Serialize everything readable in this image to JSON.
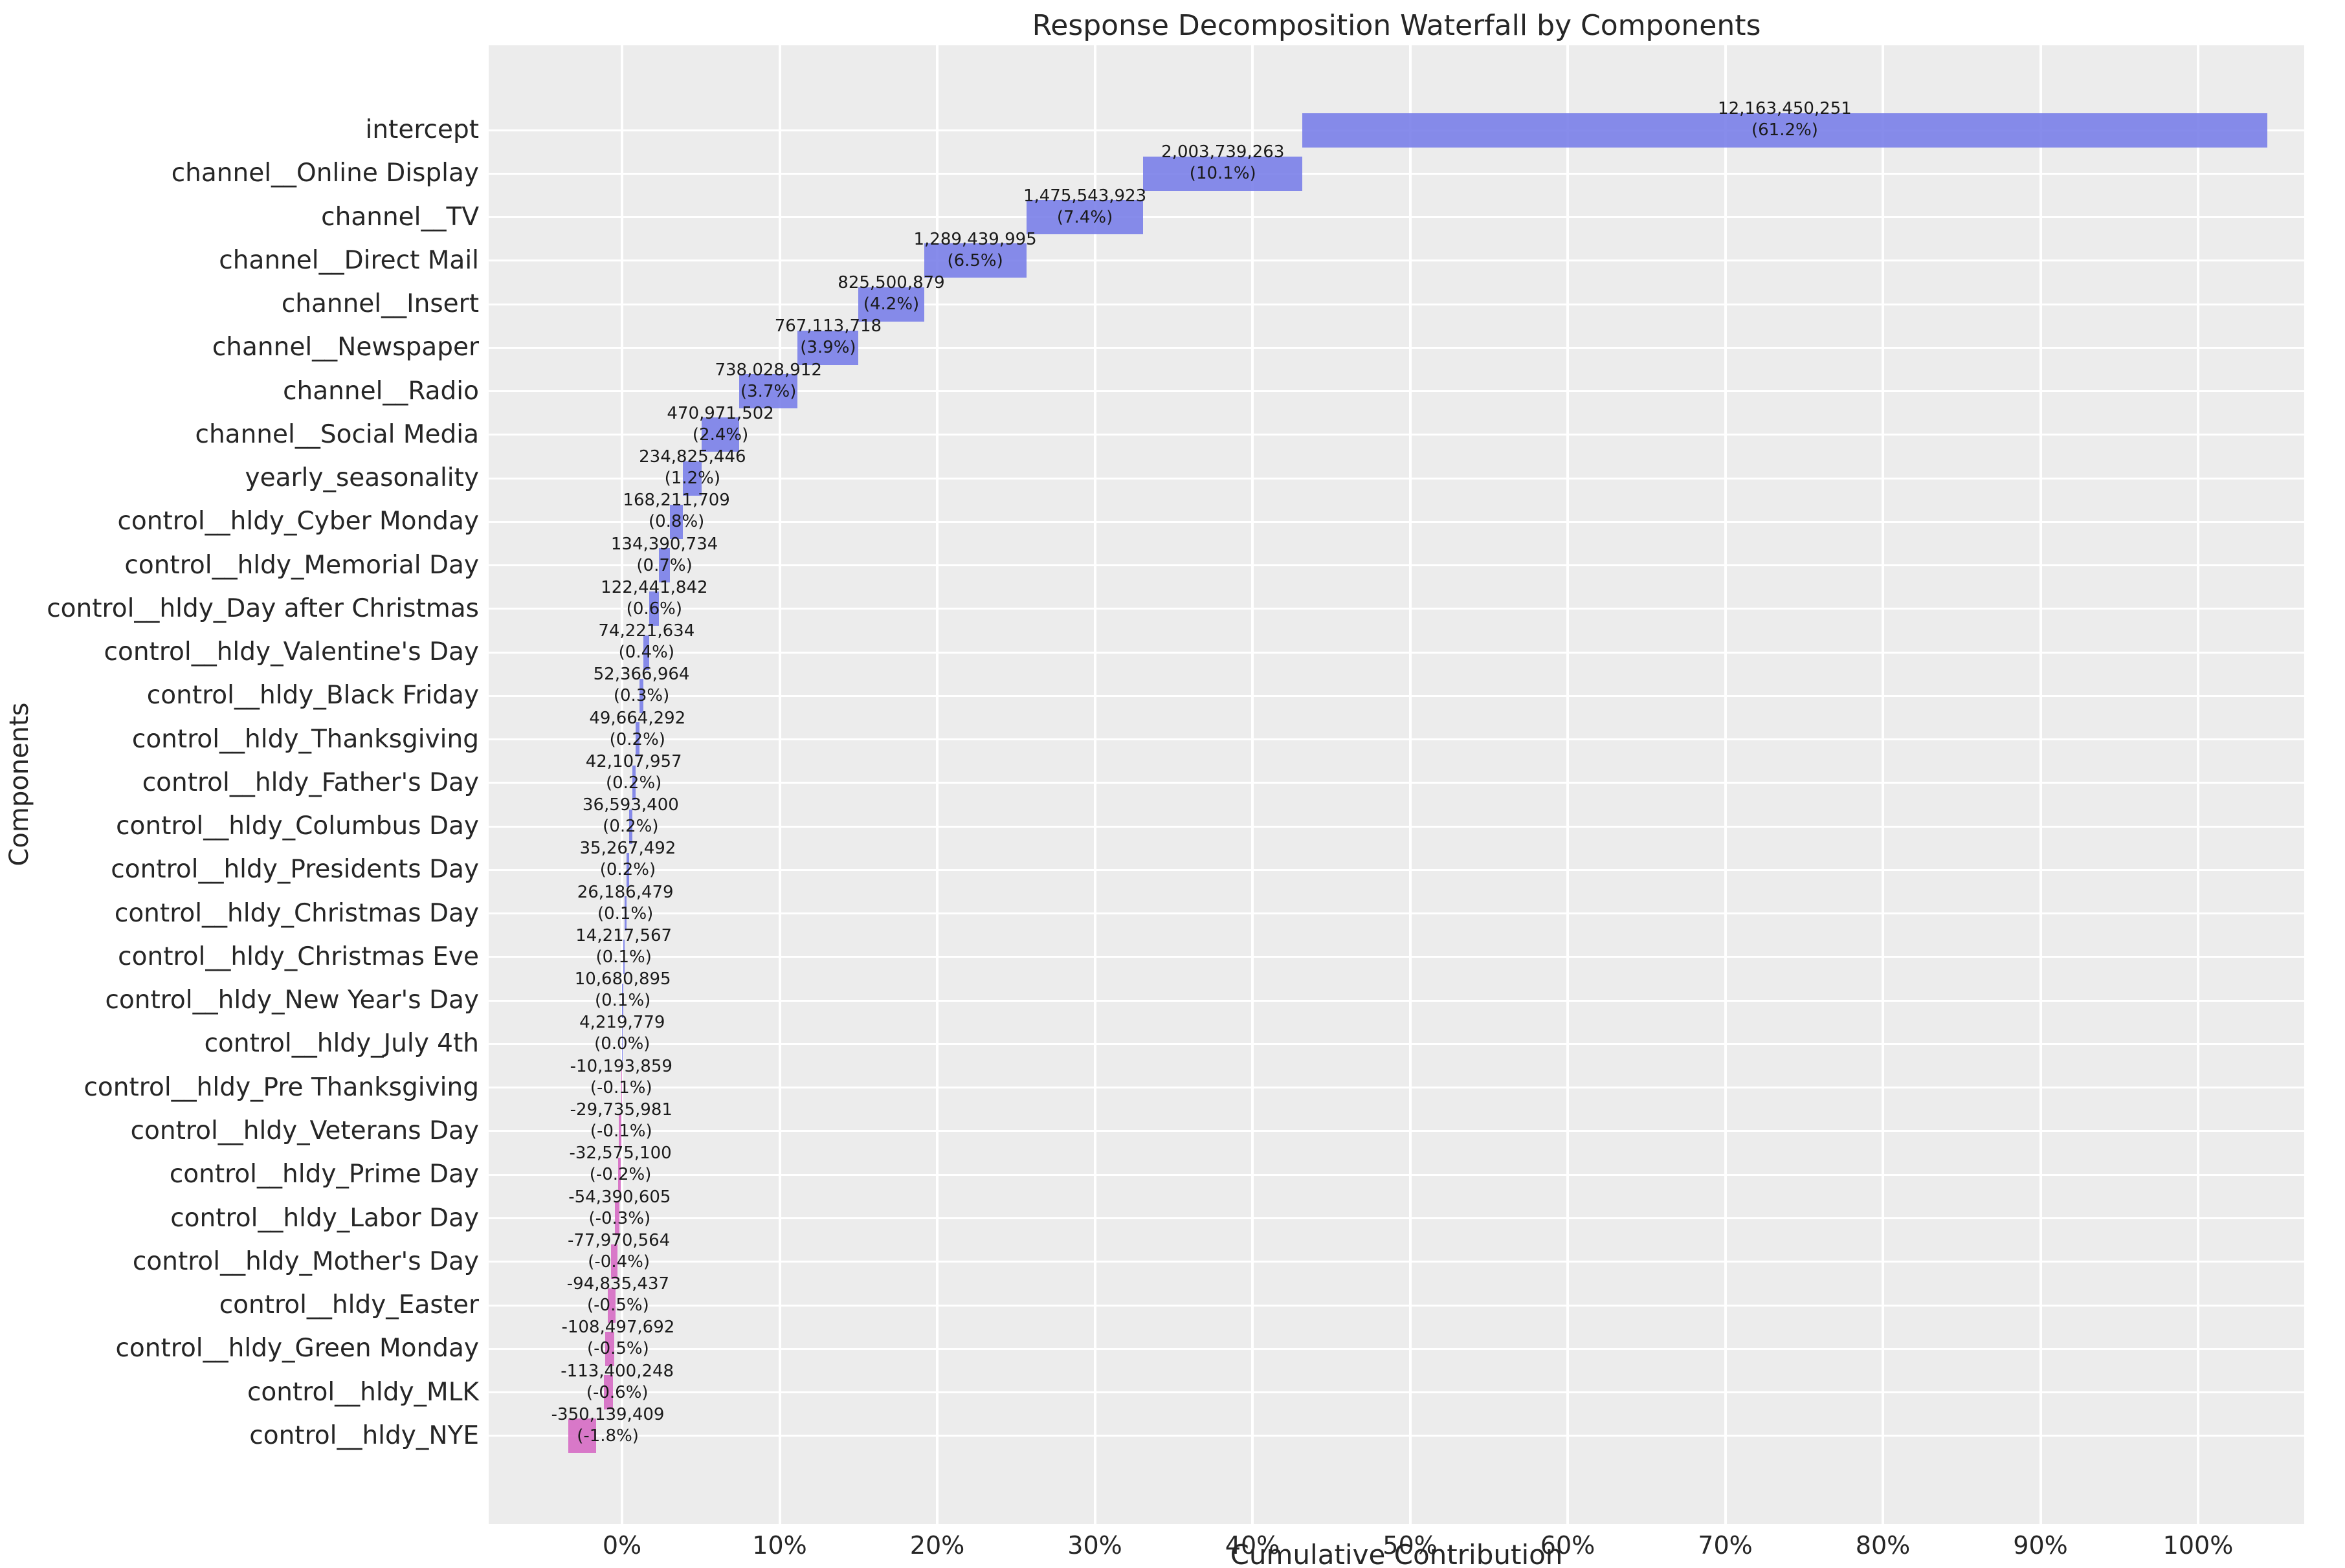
{
  "title": "Response Decomposition Waterfall by Components",
  "xlabel": "Cumulative Contribution",
  "ylabel": "Components",
  "colors": {
    "positive_bar": "#8b8fe8",
    "negative_bar": "#d882c8",
    "plot_background": "#ececec",
    "gridline": "#ffffff",
    "text": "#262626"
  },
  "chart_data": {
    "type": "bar",
    "subtype": "horizontal-waterfall",
    "title": "Response Decomposition Waterfall by Components",
    "xlabel": "Cumulative Contribution",
    "ylabel": "Components",
    "grid": true,
    "x_axis_range_pct": [
      -8.5,
      106.8
    ],
    "x_ticks": [
      {
        "label": "0%",
        "pct": 0
      },
      {
        "label": "10%",
        "pct": 10
      },
      {
        "label": "20%",
        "pct": 20
      },
      {
        "label": "30%",
        "pct": 30
      },
      {
        "label": "40%",
        "pct": 40
      },
      {
        "label": "50%",
        "pct": 50
      },
      {
        "label": "60%",
        "pct": 60
      },
      {
        "label": "70%",
        "pct": 70
      },
      {
        "label": "80%",
        "pct": 80
      },
      {
        "label": "90%",
        "pct": 90
      },
      {
        "label": "100%",
        "pct": 100
      }
    ],
    "components": [
      {
        "label": "intercept",
        "value": 12163450251,
        "value_label": "12,163,450,251",
        "pct": 61.2,
        "pct_label": "(61.2%)",
        "bar_start_pct": 43.164,
        "bar_width_pct": 61.223
      },
      {
        "label": "channel__Online Display",
        "value": 2003739263,
        "value_label": "2,003,739,263",
        "pct": 10.1,
        "pct_label": "(10.1%)",
        "bar_start_pct": 33.079,
        "bar_width_pct": 10.085
      },
      {
        "label": "channel__TV",
        "value": 1475543923,
        "value_label": "1,475,543,923",
        "pct": 7.4,
        "pct_label": "(7.4%)",
        "bar_start_pct": 25.652,
        "bar_width_pct": 7.427
      },
      {
        "label": "channel__Direct Mail",
        "value": 1289439995,
        "value_label": "1,289,439,995",
        "pct": 6.5,
        "pct_label": "(6.5%)",
        "bar_start_pct": 19.162,
        "bar_width_pct": 6.49
      },
      {
        "label": "channel__Insert",
        "value": 825500879,
        "value_label": "825,500,879",
        "pct": 4.2,
        "pct_label": "(4.2%)",
        "bar_start_pct": 15.007,
        "bar_width_pct": 4.155
      },
      {
        "label": "channel__Newspaper",
        "value": 767113718,
        "value_label": "767,113,718",
        "pct": 3.9,
        "pct_label": "(3.9%)",
        "bar_start_pct": 11.146,
        "bar_width_pct": 3.861
      },
      {
        "label": "channel__Radio",
        "value": 738028912,
        "value_label": "738,028,912",
        "pct": 3.7,
        "pct_label": "(3.7%)",
        "bar_start_pct": 7.431,
        "bar_width_pct": 3.715
      },
      {
        "label": "channel__Social Media",
        "value": 470971502,
        "value_label": "470,971,502",
        "pct": 2.4,
        "pct_label": "(2.4%)",
        "bar_start_pct": 5.061,
        "bar_width_pct": 2.37
      },
      {
        "label": "yearly_seasonality",
        "value": 234825446,
        "value_label": "234,825,446",
        "pct": 1.2,
        "pct_label": "(1.2%)",
        "bar_start_pct": 3.879,
        "bar_width_pct": 1.182
      },
      {
        "label": "control__hldy_Cyber Monday",
        "value": 168211709,
        "value_label": "168,211,709",
        "pct": 0.8,
        "pct_label": "(0.8%)",
        "bar_start_pct": 3.032,
        "bar_width_pct": 0.847
      },
      {
        "label": "control__hldy_Memorial Day",
        "value": 134390734,
        "value_label": "134,390,734",
        "pct": 0.7,
        "pct_label": "(0.7%)",
        "bar_start_pct": 2.356,
        "bar_width_pct": 0.676
      },
      {
        "label": "control__hldy_Day after Christmas",
        "value": 122441842,
        "value_label": "122,441,842",
        "pct": 0.6,
        "pct_label": "(0.6%)",
        "bar_start_pct": 1.74,
        "bar_width_pct": 0.616
      },
      {
        "label": "control__hldy_Valentine's Day",
        "value": 74221634,
        "value_label": "74,221,634",
        "pct": 0.4,
        "pct_label": "(0.4%)",
        "bar_start_pct": 1.366,
        "bar_width_pct": 0.374
      },
      {
        "label": "control__hldy_Black Friday",
        "value": 52366964,
        "value_label": "52,366,964",
        "pct": 0.3,
        "pct_label": "(0.3%)",
        "bar_start_pct": 1.102,
        "bar_width_pct": 0.264
      },
      {
        "label": "control__hldy_Thanksgiving",
        "value": 49664292,
        "value_label": "49,664,292",
        "pct": 0.2,
        "pct_label": "(0.2%)",
        "bar_start_pct": 0.852,
        "bar_width_pct": 0.25
      },
      {
        "label": "control__hldy_Father's Day",
        "value": 42107957,
        "value_label": "42,107,957",
        "pct": 0.2,
        "pct_label": "(0.2%)",
        "bar_start_pct": 0.64,
        "bar_width_pct": 0.212
      },
      {
        "label": "control__hldy_Columbus Day",
        "value": 36593400,
        "value_label": "36,593,400",
        "pct": 0.2,
        "pct_label": "(0.2%)",
        "bar_start_pct": 0.456,
        "bar_width_pct": 0.184
      },
      {
        "label": "control__hldy_Presidents Day",
        "value": 35267492,
        "value_label": "35,267,492",
        "pct": 0.2,
        "pct_label": "(0.2%)",
        "bar_start_pct": 0.278,
        "bar_width_pct": 0.178
      },
      {
        "label": "control__hldy_Christmas Day",
        "value": 26186479,
        "value_label": "26,186,479",
        "pct": 0.1,
        "pct_label": "(0.1%)",
        "bar_start_pct": 0.146,
        "bar_width_pct": 0.132
      },
      {
        "label": "control__hldy_Christmas Eve",
        "value": 14217567,
        "value_label": "14,217,567",
        "pct": 0.1,
        "pct_label": "(0.1%)",
        "bar_start_pct": 0.074,
        "bar_width_pct": 0.072
      },
      {
        "label": "control__hldy_New Year's Day",
        "value": 10680895,
        "value_label": "10,680,895",
        "pct": 0.1,
        "pct_label": "(0.1%)",
        "bar_start_pct": 0.02,
        "bar_width_pct": 0.054
      },
      {
        "label": "control__hldy_July 4th",
        "value": 4219779,
        "value_label": "4,219,779",
        "pct": 0.0,
        "pct_label": "(0.0%)",
        "bar_start_pct": 0.0,
        "bar_width_pct": 0.021
      },
      {
        "label": "control__hldy_Pre Thanksgiving",
        "value": -10193859,
        "value_label": "-10,193,859",
        "pct": -0.1,
        "pct_label": "(-0.1%)",
        "bar_start_pct": -0.051,
        "bar_width_pct": 0.051
      },
      {
        "label": "control__hldy_Veterans Day",
        "value": -29735981,
        "value_label": "-29,735,981",
        "pct": -0.1,
        "pct_label": "(-0.1%)",
        "bar_start_pct": -0.2,
        "bar_width_pct": 0.15
      },
      {
        "label": "control__hldy_Prime Day",
        "value": -32575100,
        "value_label": "-32,575,100",
        "pct": -0.2,
        "pct_label": "(-0.2%)",
        "bar_start_pct": -0.264,
        "bar_width_pct": 0.164
      },
      {
        "label": "control__hldy_Labor Day",
        "value": -54390605,
        "value_label": "-54,390,605",
        "pct": -0.3,
        "pct_label": "(-0.3%)",
        "bar_start_pct": -0.44,
        "bar_width_pct": 0.274
      },
      {
        "label": "control__hldy_Mother's Day",
        "value": -77970564,
        "value_label": "-77,970,564",
        "pct": -0.4,
        "pct_label": "(-0.4%)",
        "bar_start_pct": -0.68,
        "bar_width_pct": 0.392
      },
      {
        "label": "control__hldy_Easter",
        "value": -94835437,
        "value_label": "-94,835,437",
        "pct": -0.5,
        "pct_label": "(-0.5%)",
        "bar_start_pct": -0.9,
        "bar_width_pct": 0.477
      },
      {
        "label": "control__hldy_Green Monday",
        "value": -108497692,
        "value_label": "-108,497,692",
        "pct": -0.5,
        "pct_label": "(-0.5%)",
        "bar_start_pct": -1.05,
        "bar_width_pct": 0.546
      },
      {
        "label": "control__hldy_MLK",
        "value": -113400248,
        "value_label": "-113,400,248",
        "pct": -0.6,
        "pct_label": "(-0.6%)",
        "bar_start_pct": -1.13,
        "bar_width_pct": 0.571
      },
      {
        "label": "control__hldy_NYE",
        "value": -350139409,
        "value_label": "-350,139,409",
        "pct": -1.8,
        "pct_label": "(-1.8%)",
        "bar_start_pct": -3.4,
        "bar_width_pct": 1.762
      }
    ]
  }
}
